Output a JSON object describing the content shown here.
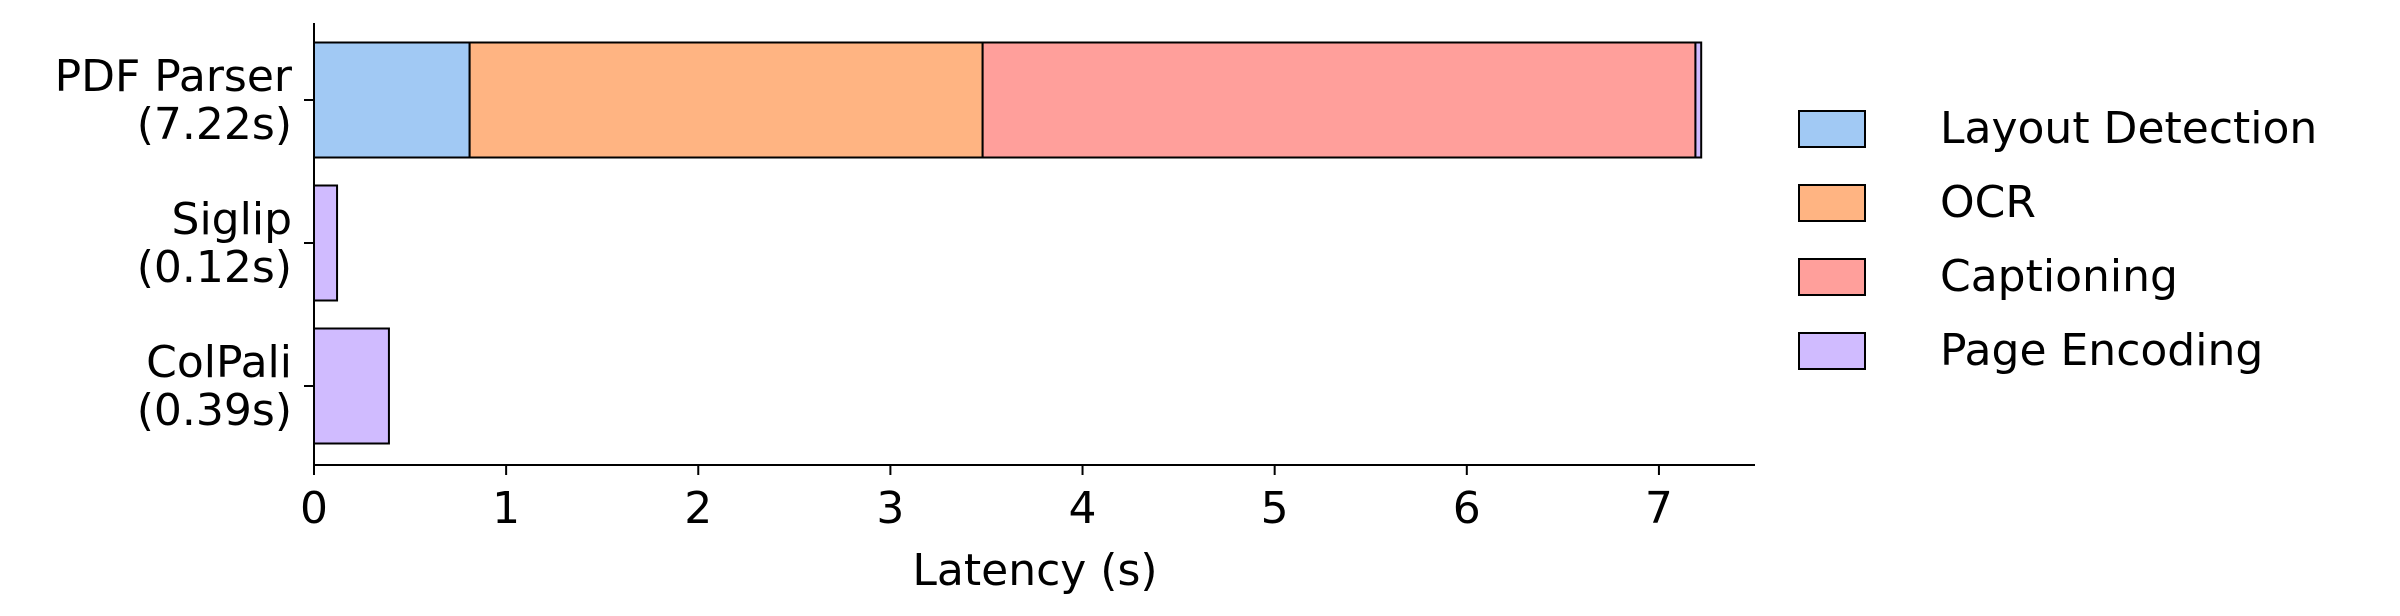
{
  "chart_data": {
    "type": "stacked-barh",
    "xlabel": "Latency (s)",
    "categories": [
      "PDF Parser\n(7.22s)",
      "Siglip\n(0.12s)",
      "ColPali\n(0.39s)"
    ],
    "series": [
      {
        "name": "Layout Detection",
        "color": "#a1c9f4",
        "values": [
          0.81,
          null,
          null
        ]
      },
      {
        "name": "OCR",
        "color": "#ffb482",
        "values": [
          2.67,
          null,
          null
        ]
      },
      {
        "name": "Captioning",
        "color": "#ff9f9b",
        "values": [
          3.71,
          null,
          null
        ]
      },
      {
        "name": "Page Encoding",
        "color": "#d0bbff",
        "values": [
          0.03,
          0.12,
          0.39
        ]
      }
    ],
    "xlim": [
      0,
      7.5
    ],
    "xticks": [
      0,
      1,
      2,
      3,
      4,
      5,
      6,
      7
    ],
    "legend": "outside-right"
  }
}
